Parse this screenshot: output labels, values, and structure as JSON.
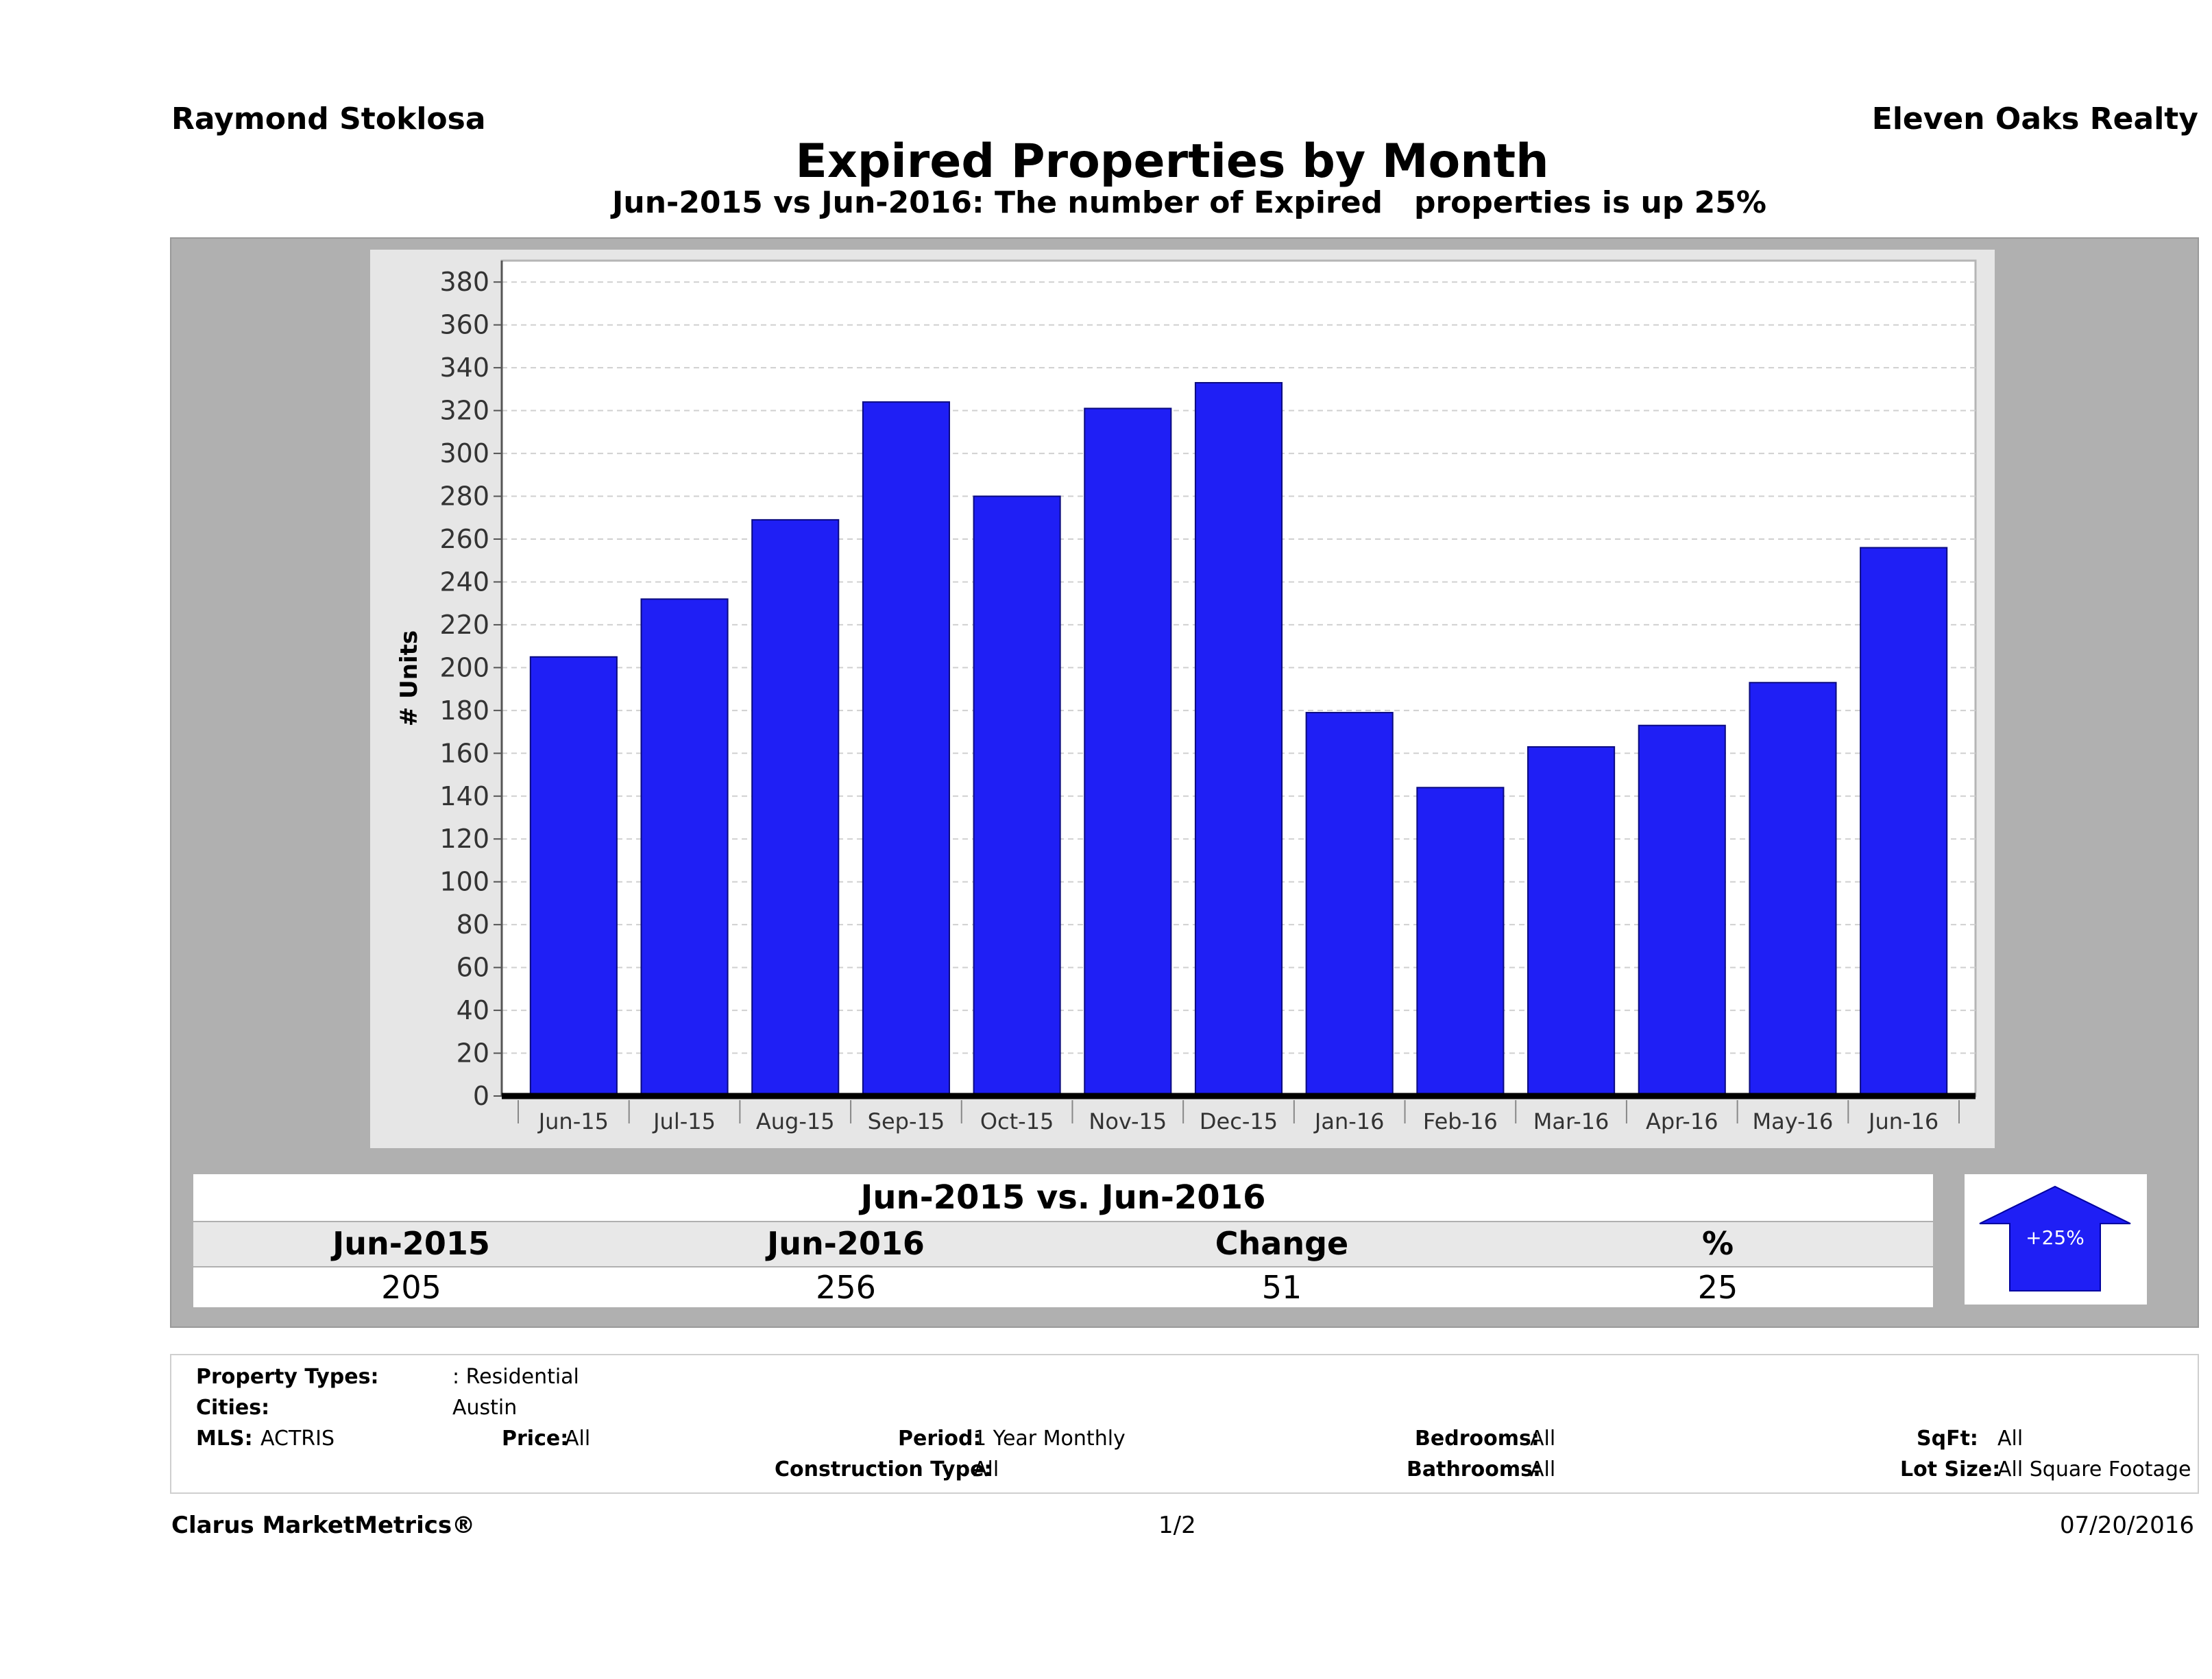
{
  "header": {
    "agent_name": "Raymond Stoklosa",
    "brokerage": "Eleven Oaks Realty"
  },
  "chart_data": {
    "type": "bar",
    "title": "Expired Properties by Month",
    "subtitle": "Jun-2015 vs Jun-2016: The number of Expired   properties is up 25%",
    "ylabel": "# Units",
    "xlabel": "",
    "categories": [
      "Jun-15",
      "Jul-15",
      "Aug-15",
      "Sep-15",
      "Oct-15",
      "Nov-15",
      "Dec-15",
      "Jan-16",
      "Feb-16",
      "Mar-16",
      "Apr-16",
      "May-16",
      "Jun-16"
    ],
    "values": [
      205,
      232,
      269,
      324,
      280,
      321,
      333,
      179,
      144,
      163,
      173,
      193,
      256
    ],
    "ylim": [
      0,
      390
    ],
    "yticks": [
      0,
      20,
      40,
      60,
      80,
      100,
      120,
      140,
      160,
      180,
      200,
      220,
      240,
      260,
      280,
      300,
      320,
      340,
      360,
      380
    ],
    "grid": true,
    "bar_color": "#1f1ff5"
  },
  "summary": {
    "title": "Jun-2015 vs. Jun-2016",
    "headers": [
      "Jun-2015",
      "Jun-2016",
      "Change",
      "%"
    ],
    "values": [
      "205",
      "256",
      "51",
      "25"
    ],
    "badge": "+25%",
    "badge_icon": "up-arrow-icon"
  },
  "filters": {
    "property_types_label": "Property Types:",
    "property_types_value": ": Residential",
    "cities_label": "Cities:",
    "cities_value": "Austin",
    "mls_label": "MLS:",
    "mls_value": "ACTRIS",
    "price_label": "Price:",
    "price_value": "All",
    "period_label": "Period:",
    "period_value": "1 Year Monthly",
    "construction_label": "Construction Type:",
    "construction_value": "All",
    "bedrooms_label": "Bedrooms:",
    "bedrooms_value": "All",
    "bathrooms_label": "Bathrooms:",
    "bathrooms_value": "All",
    "sqft_label": "SqFt:",
    "sqft_value": "All",
    "lotsize_label": "Lot Size:",
    "lotsize_value": "All Square Footage"
  },
  "footer": {
    "brand": "Clarus MarketMetrics®",
    "page": "1/2",
    "date": "07/20/2016"
  }
}
